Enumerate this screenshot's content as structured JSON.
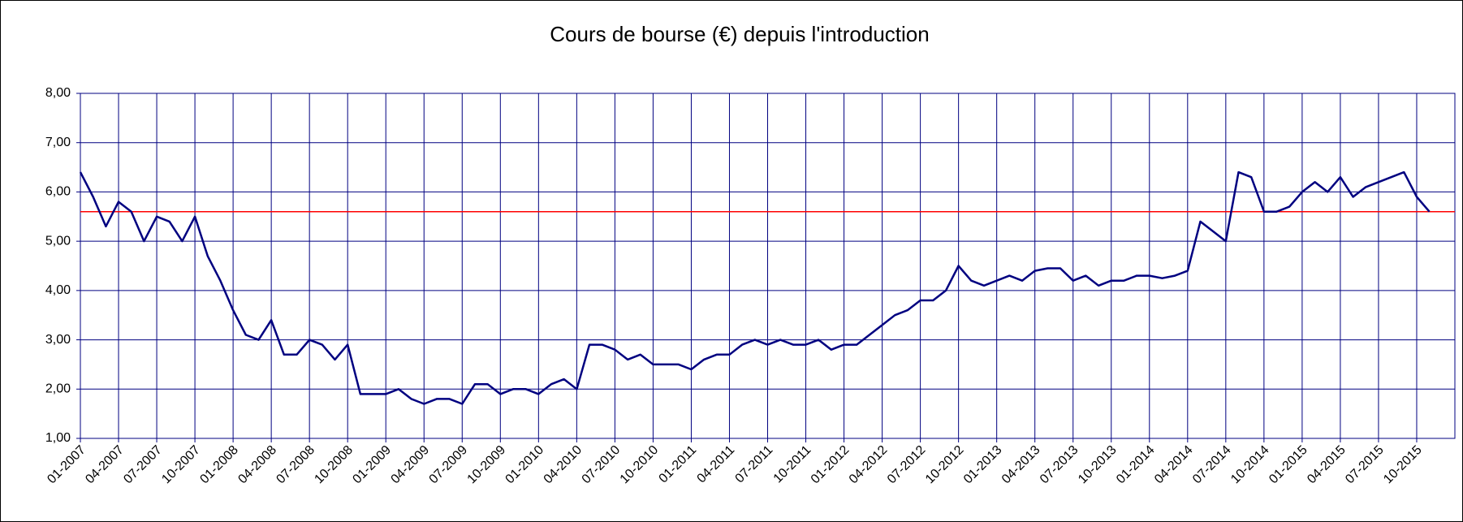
{
  "chart_data": {
    "type": "line",
    "title": "Cours de bourse (€) depuis l'introduction",
    "x": [
      "01-2007",
      "02-2007",
      "03-2007",
      "04-2007",
      "05-2007",
      "06-2007",
      "07-2007",
      "08-2007",
      "09-2007",
      "10-2007",
      "11-2007",
      "12-2007",
      "01-2008",
      "02-2008",
      "03-2008",
      "04-2008",
      "05-2008",
      "06-2008",
      "07-2008",
      "08-2008",
      "09-2008",
      "10-2008",
      "11-2008",
      "12-2008",
      "01-2009",
      "02-2009",
      "03-2009",
      "04-2009",
      "05-2009",
      "06-2009",
      "07-2009",
      "08-2009",
      "09-2009",
      "10-2009",
      "11-2009",
      "12-2009",
      "01-2010",
      "02-2010",
      "03-2010",
      "04-2010",
      "05-2010",
      "06-2010",
      "07-2010",
      "08-2010",
      "09-2010",
      "10-2010",
      "11-2010",
      "12-2010",
      "01-2011",
      "02-2011",
      "03-2011",
      "04-2011",
      "05-2011",
      "06-2011",
      "07-2011",
      "08-2011",
      "09-2011",
      "10-2011",
      "11-2011",
      "12-2011",
      "01-2012",
      "02-2012",
      "03-2012",
      "04-2012",
      "05-2012",
      "06-2012",
      "07-2012",
      "08-2012",
      "09-2012",
      "10-2012",
      "11-2012",
      "12-2012",
      "01-2013",
      "02-2013",
      "03-2013",
      "04-2013",
      "05-2013",
      "06-2013",
      "07-2013",
      "08-2013",
      "09-2013",
      "10-2013",
      "11-2013",
      "12-2013",
      "01-2014",
      "02-2014",
      "03-2014",
      "04-2014",
      "05-2014",
      "06-2014",
      "07-2014",
      "08-2014",
      "09-2014",
      "10-2014",
      "11-2014",
      "12-2014",
      "01-2015",
      "02-2015",
      "03-2015",
      "04-2015",
      "05-2015",
      "06-2015",
      "07-2015",
      "08-2015",
      "09-2015",
      "10-2015",
      "11-2015"
    ],
    "series": [
      {
        "name": "Cours",
        "color": "#000080",
        "values": [
          6.4,
          5.9,
          5.3,
          5.8,
          5.6,
          5.0,
          5.5,
          5.4,
          5.0,
          5.5,
          4.7,
          4.2,
          3.6,
          3.1,
          3.0,
          3.4,
          2.7,
          2.7,
          3.0,
          2.9,
          2.6,
          2.9,
          1.9,
          1.9,
          1.9,
          2.0,
          1.8,
          1.7,
          1.8,
          1.8,
          1.7,
          2.1,
          2.1,
          1.9,
          2.0,
          2.0,
          1.9,
          2.1,
          2.2,
          2.0,
          2.9,
          2.9,
          2.8,
          2.6,
          2.7,
          2.5,
          2.5,
          2.5,
          2.4,
          2.6,
          2.7,
          2.7,
          2.9,
          3.0,
          2.9,
          3.0,
          2.9,
          2.9,
          3.0,
          2.8,
          2.9,
          2.9,
          3.1,
          3.3,
          3.5,
          3.6,
          3.8,
          3.8,
          4.0,
          4.5,
          4.2,
          4.1,
          4.2,
          4.3,
          4.2,
          4.4,
          4.45,
          4.45,
          4.2,
          4.3,
          4.1,
          4.2,
          4.2,
          4.3,
          4.3,
          4.25,
          4.3,
          4.4,
          5.4,
          5.2,
          5.0,
          6.4,
          6.3,
          5.6,
          5.6,
          5.7,
          6.0,
          6.2,
          6.0,
          6.3,
          5.9,
          6.1,
          6.2,
          6.3,
          6.4,
          5.9,
          5.6
        ]
      }
    ],
    "reference": {
      "value": 5.6,
      "color": "#ff0000"
    },
    "xlim": [
      "01-2007",
      "01-2016"
    ],
    "xticks": [
      "01-2007",
      "04-2007",
      "07-2007",
      "10-2007",
      "01-2008",
      "04-2008",
      "07-2008",
      "10-2008",
      "01-2009",
      "04-2009",
      "07-2009",
      "10-2009",
      "01-2010",
      "04-2010",
      "07-2010",
      "10-2010",
      "01-2011",
      "04-2011",
      "07-2011",
      "10-2011",
      "01-2012",
      "04-2012",
      "07-2012",
      "10-2012",
      "01-2013",
      "04-2013",
      "07-2013",
      "10-2013",
      "01-2014",
      "04-2014",
      "07-2014",
      "10-2014",
      "01-2015",
      "04-2015",
      "07-2015",
      "10-2015"
    ],
    "ylim": [
      1,
      8
    ],
    "yticks": [
      {
        "value": 1,
        "label": "1,00"
      },
      {
        "value": 2,
        "label": "2,00"
      },
      {
        "value": 3,
        "label": "3,00"
      },
      {
        "value": 4,
        "label": "4,00"
      },
      {
        "value": 5,
        "label": "5,00"
      },
      {
        "value": 6,
        "label": "6,00"
      },
      {
        "value": 7,
        "label": "7,00"
      },
      {
        "value": 8,
        "label": "8,00"
      }
    ],
    "grid": true,
    "grid_color": "#000080"
  }
}
